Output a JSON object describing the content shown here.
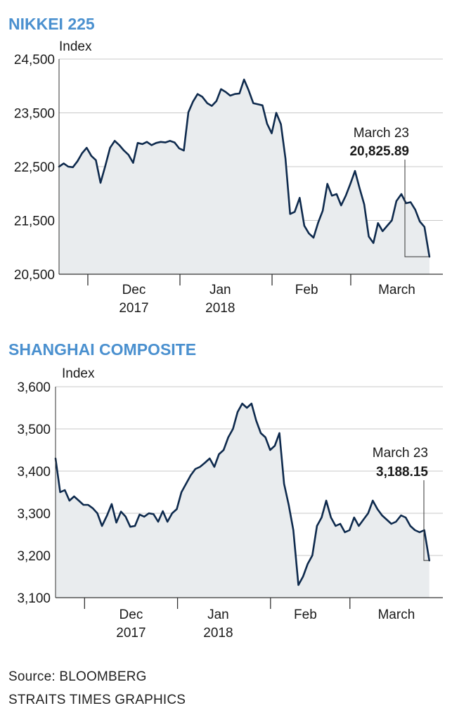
{
  "colors": {
    "title": "#4a90cf",
    "line": "#0e2a4d",
    "fill": "#e9ecee",
    "grid": "#c8c8c8",
    "axis": "#333333",
    "text": "#1a1a1a"
  },
  "footer": {
    "source": "Source: BLOOMBERG",
    "credit": "STRAITS TIMES GRAPHICS"
  },
  "chart_data": [
    {
      "type": "area",
      "title": "NIKKEI 225",
      "ylabel": "Index",
      "ylim": [
        20500,
        24500
      ],
      "yticks": [
        20500,
        21500,
        22500,
        23500,
        24500
      ],
      "ytick_labels": [
        "20,500",
        "21,500",
        "22,500",
        "23,500",
        "24,500"
      ],
      "xlim": [
        0,
        100
      ],
      "xticks": [
        {
          "label": "Dec",
          "sub": "2017",
          "at": 19.5,
          "sep": 7.5
        },
        {
          "label": "Jan",
          "sub": "2018",
          "at": 42.0,
          "sep": 31.5
        },
        {
          "label": "Feb",
          "sub": "",
          "at": 64.5,
          "sep": 55.5
        },
        {
          "label": "March",
          "sub": "",
          "at": 88.0,
          "sep": 76.0
        }
      ],
      "annotation": {
        "label": "March 23",
        "value_label": "20,825.89",
        "x": 96.5,
        "y": 20825.89
      },
      "series": [
        {
          "x": [
            0,
            1.2,
            2.4,
            3.6,
            4.8,
            6.0,
            7.2,
            8.4,
            9.6,
            10.8,
            12.0,
            13.3,
            14.5,
            15.7,
            16.9,
            18.1,
            19.3,
            20.5,
            21.7,
            22.9,
            24.1,
            25.3,
            26.5,
            27.7,
            28.9,
            30.1,
            31.3,
            32.5,
            33.7,
            34.9,
            36.1,
            37.3,
            38.6,
            39.8,
            41.0,
            42.2,
            43.4,
            44.6,
            45.8,
            47.0,
            48.2,
            49.4,
            50.6,
            51.8,
            53.0,
            54.2,
            55.4,
            56.6,
            57.8,
            59.0,
            60.2,
            61.4,
            62.7,
            63.9,
            65.1,
            66.3,
            67.5,
            68.7,
            69.9,
            71.1,
            72.3,
            73.5,
            74.7,
            75.9,
            77.1,
            78.3,
            79.5,
            80.7,
            81.9,
            83.1,
            84.3,
            85.5,
            86.7,
            87.9,
            89.2,
            90.4,
            91.6,
            92.8,
            94.0,
            95.2,
            96.5
          ],
          "y": [
            22500,
            22560,
            22500,
            22490,
            22600,
            22750,
            22850,
            22700,
            22620,
            22200,
            22500,
            22850,
            22980,
            22900,
            22800,
            22720,
            22570,
            22940,
            22920,
            22960,
            22900,
            22940,
            22960,
            22950,
            22980,
            22950,
            22840,
            22800,
            23510,
            23710,
            23850,
            23800,
            23680,
            23630,
            23720,
            23940,
            23890,
            23820,
            23850,
            23860,
            24120,
            23920,
            23680,
            23660,
            23640,
            23300,
            23120,
            23500,
            23290,
            22650,
            21620,
            21660,
            21920,
            21400,
            21260,
            21180,
            21460,
            21680,
            22180,
            21960,
            21990,
            21780,
            21960,
            22180,
            22420,
            22100,
            21800,
            21200,
            21080,
            21450,
            21300,
            21400,
            21500,
            21860,
            21990,
            21820,
            21840,
            21700,
            21480,
            21380,
            20825.89
          ]
        }
      ]
    },
    {
      "type": "area",
      "title": "SHANGHAI COMPOSITE",
      "ylabel": "Index",
      "ylim": [
        3100,
        3600
      ],
      "yticks": [
        3100,
        3200,
        3300,
        3400,
        3500,
        3600
      ],
      "ytick_labels": [
        "3,100",
        "3,200",
        "3,300",
        "3,400",
        "3,500",
        "3,600"
      ],
      "xlim": [
        0,
        100
      ],
      "xticks": [
        {
          "label": "Dec",
          "sub": "2017",
          "at": 19.5,
          "sep": 7.5
        },
        {
          "label": "Jan",
          "sub": "2018",
          "at": 42.0,
          "sep": 31.5
        },
        {
          "label": "Feb",
          "sub": "",
          "at": 64.5,
          "sep": 55.5
        },
        {
          "label": "March",
          "sub": "",
          "at": 88.0,
          "sep": 76.0
        }
      ],
      "annotation": {
        "label": "March 23",
        "value_label": "3,188.15",
        "x": 96.5,
        "y": 3188.15
      },
      "series": [
        {
          "x": [
            0,
            1.2,
            2.4,
            3.6,
            4.8,
            6.0,
            7.2,
            8.4,
            9.6,
            10.8,
            12.0,
            13.3,
            14.5,
            15.7,
            16.9,
            18.1,
            19.3,
            20.5,
            21.7,
            22.9,
            24.1,
            25.3,
            26.5,
            27.7,
            28.9,
            30.1,
            31.3,
            32.5,
            33.7,
            34.9,
            36.1,
            37.3,
            38.6,
            39.8,
            41.0,
            42.2,
            43.4,
            44.6,
            45.8,
            47.0,
            48.2,
            49.4,
            50.6,
            51.8,
            53.0,
            54.2,
            55.4,
            56.6,
            57.8,
            59.0,
            60.2,
            61.4,
            62.7,
            63.9,
            65.1,
            66.3,
            67.5,
            68.7,
            69.9,
            71.1,
            72.3,
            73.5,
            74.7,
            75.9,
            77.1,
            78.3,
            79.5,
            80.7,
            81.9,
            83.1,
            84.3,
            85.5,
            86.7,
            87.9,
            89.2,
            90.4,
            91.6,
            92.8,
            94.0,
            95.2,
            96.5
          ],
          "y": [
            3430,
            3350,
            3355,
            3330,
            3340,
            3330,
            3320,
            3320,
            3312,
            3300,
            3270,
            3295,
            3322,
            3278,
            3304,
            3292,
            3268,
            3270,
            3297,
            3292,
            3300,
            3298,
            3280,
            3305,
            3280,
            3300,
            3310,
            3350,
            3370,
            3390,
            3405,
            3410,
            3420,
            3430,
            3410,
            3440,
            3450,
            3480,
            3500,
            3540,
            3560,
            3550,
            3560,
            3520,
            3490,
            3480,
            3450,
            3460,
            3490,
            3370,
            3320,
            3260,
            3130,
            3150,
            3180,
            3200,
            3270,
            3290,
            3330,
            3290,
            3270,
            3275,
            3255,
            3260,
            3290,
            3270,
            3285,
            3300,
            3330,
            3310,
            3295,
            3285,
            3275,
            3280,
            3295,
            3290,
            3270,
            3260,
            3255,
            3260,
            3188.15
          ]
        }
      ]
    }
  ]
}
